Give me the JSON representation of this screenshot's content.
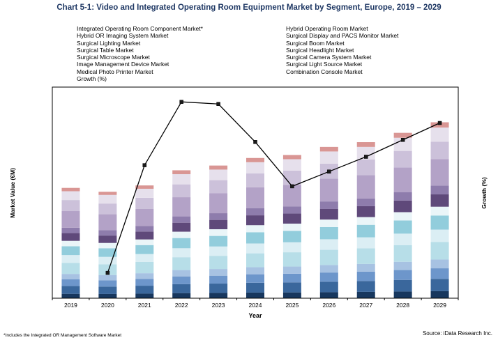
{
  "title": "Chart 5-1: Video and Integrated Operating Room Equipment Market by Segment, Europe, 2019 – 2029",
  "legend": {
    "left": [
      "Integrated Operating Room Component Market*",
      "Hybrid OR Imaging System Market",
      "Surgical Lighting Market",
      "Surgical Table Market",
      "Surgical Microscope Market",
      "Image Management Device Market",
      "Medical Photo Printer Market",
      "Growth (%)"
    ],
    "right": [
      "Hybrid Operating Room Market",
      "Surgical Display and PACS Monitor Market",
      "Surgical Boom Market",
      "Surgical Headlight Market",
      "Surgical Camera System Market",
      "Surgical Light Source Market",
      "Combination Console Market"
    ]
  },
  "axes": {
    "y_left": "Market Value (€M)",
    "y_right": "Growth (%)",
    "x": "Year"
  },
  "footnote": "*Includes the Integrated OR Management Software Market",
  "source": "Source: iData Research Inc.",
  "chart_data": {
    "type": "bar",
    "subtype": "stacked-columns-with-growth-line",
    "title": "Chart 5-1: Video and Integrated Operating Room Equipment Market by Segment, Europe, 2019 – 2029",
    "xlabel": "Year",
    "ylabel": "Market Value (€M)",
    "ylabel_secondary": "Growth (%)",
    "grid": false,
    "legend_position": "top",
    "note": "No numeric tick labels are shown on either value axis; values below are relative estimates indexed so 2029 total = 100",
    "categories": [
      "2019",
      "2020",
      "2021",
      "2022",
      "2023",
      "2024",
      "2025",
      "2026",
      "2027",
      "2028",
      "2029"
    ],
    "value_axis": {
      "label": "Market Value (€M)",
      "range": [
        0,
        120
      ],
      "tick_labels_visible": false
    },
    "secondary_axis": {
      "label": "Growth (%)",
      "range": [
        0,
        100
      ],
      "tick_labels_visible": false
    },
    "series": [
      {
        "name": "Integrated Operating Room Component Market*",
        "color": "#17375E",
        "values": [
          2.5,
          2.4,
          2.6,
          2.9,
          3.0,
          3.2,
          3.3,
          3.4,
          3.6,
          3.8,
          4.0
        ]
      },
      {
        "name": "Hybrid Operating Room Market",
        "color": "#3A679C",
        "values": [
          4.4,
          4.2,
          4.5,
          5.1,
          5.3,
          5.6,
          5.7,
          6.0,
          6.2,
          6.6,
          7.0
        ]
      },
      {
        "name": "Hybrid OR Imaging System Market",
        "color": "#6D96CB",
        "values": [
          3.8,
          3.6,
          3.9,
          4.4,
          4.5,
          4.8,
          4.9,
          5.2,
          5.3,
          5.6,
          6.0
        ]
      },
      {
        "name": "Surgical Display and PACS Monitor Market",
        "color": "#A7C2E2",
        "values": [
          3.1,
          3.0,
          3.2,
          3.6,
          3.8,
          4.0,
          4.1,
          4.3,
          4.4,
          4.7,
          5.0
        ]
      },
      {
        "name": "Surgical Lighting Market",
        "color": "#B7DEE8",
        "values": [
          6.3,
          6.1,
          6.4,
          7.3,
          7.5,
          7.9,
          8.1,
          8.6,
          8.9,
          9.4,
          10.0
        ]
      },
      {
        "name": "Surgical Boom Market",
        "color": "#DBEEF4",
        "values": [
          4.4,
          4.2,
          4.5,
          5.1,
          5.3,
          5.6,
          5.7,
          6.0,
          6.2,
          6.6,
          7.0
        ]
      },
      {
        "name": "Surgical Table Market",
        "color": "#92CDDC",
        "values": [
          5.0,
          4.9,
          5.1,
          5.8,
          6.0,
          6.4,
          6.5,
          6.9,
          7.1,
          7.5,
          8.0
        ]
      },
      {
        "name": "Surgical Headlight Market",
        "color": "#EAF5F8",
        "values": [
          3.1,
          3.0,
          3.2,
          3.6,
          3.8,
          4.0,
          4.1,
          4.3,
          4.4,
          4.7,
          5.0
        ]
      },
      {
        "name": "Surgical Microscope Market",
        "color": "#5F497A",
        "values": [
          4.4,
          4.2,
          4.5,
          5.1,
          5.3,
          5.6,
          5.7,
          6.0,
          6.2,
          6.6,
          7.0
        ]
      },
      {
        "name": "Surgical Camera System Market",
        "color": "#8E7CAC",
        "values": [
          3.1,
          3.0,
          3.2,
          3.6,
          3.8,
          4.0,
          4.1,
          4.3,
          4.4,
          4.7,
          5.0
        ]
      },
      {
        "name": "Image Management Device Market",
        "color": "#B3A2C7",
        "values": [
          9.4,
          9.1,
          9.6,
          10.9,
          11.3,
          11.9,
          12.2,
          12.9,
          13.3,
          14.1,
          15.0
        ]
      },
      {
        "name": "Surgical Light Source Market",
        "color": "#CCC1DA",
        "values": [
          6.3,
          6.1,
          6.4,
          7.3,
          7.5,
          7.9,
          8.1,
          8.6,
          8.9,
          9.4,
          10.0
        ]
      },
      {
        "name": "Medical Photo Printer Market",
        "color": "#E6E0EC",
        "values": [
          5.0,
          4.9,
          5.1,
          5.8,
          6.0,
          6.4,
          6.5,
          6.9,
          7.1,
          7.5,
          8.0
        ]
      },
      {
        "name": "Combination Console Market",
        "color": "#D99694",
        "values": [
          1.9,
          1.8,
          1.9,
          2.2,
          2.3,
          2.4,
          2.4,
          2.6,
          2.7,
          2.8,
          3.0
        ]
      }
    ],
    "line_series": {
      "name": "Growth (%)",
      "color": "#000000",
      "marker": "square",
      "values": [
        null,
        12,
        63,
        93,
        92,
        74,
        53,
        60,
        67,
        75,
        83
      ]
    }
  }
}
